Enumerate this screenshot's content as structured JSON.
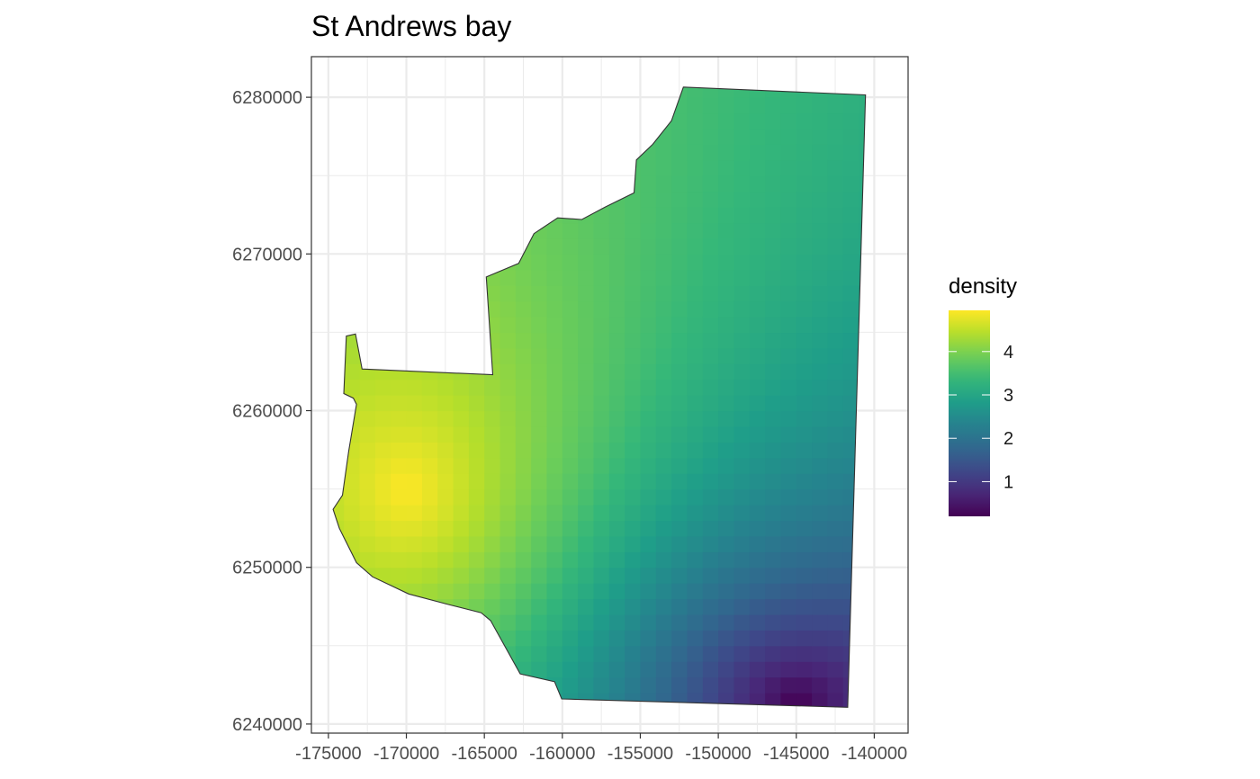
{
  "chart_data": {
    "type": "heatmap",
    "title": "St Andrews bay",
    "xlabel": "",
    "ylabel": "",
    "x_ticks": [
      -175000,
      -170000,
      -165000,
      -160000,
      -155000,
      -150000,
      -145000,
      -140000
    ],
    "x_tick_labels": [
      "-175000",
      "-170000",
      "-165000",
      "-160000",
      "-155000",
      "-150000",
      "-145000",
      "-140000"
    ],
    "y_ticks": [
      6240000,
      6250000,
      6260000,
      6270000,
      6280000
    ],
    "y_tick_labels": [
      "6240000",
      "6250000",
      "6260000",
      "6270000",
      "6280000"
    ],
    "xlim": [
      -176090,
      -137830
    ],
    "ylim": [
      6239420,
      6282590
    ],
    "grid": true,
    "fill_variable": "density",
    "colorscale": "viridis",
    "value_range": [
      0.2,
      4.95
    ],
    "hotspot": {
      "x": -170000,
      "y": 6255000,
      "value": 4.95
    },
    "coldspot": {
      "x": -145000,
      "y": 6241500,
      "value": 0.2
    },
    "grid_cell_size": 1000,
    "boundary": [
      [
        -164880,
        6268530
      ],
      [
        -162800,
        6269400
      ],
      [
        -161820,
        6271300
      ],
      [
        -160300,
        6272300
      ],
      [
        -158750,
        6272200
      ],
      [
        -157250,
        6273000
      ],
      [
        -155400,
        6273900
      ],
      [
        -155250,
        6276000
      ],
      [
        -154200,
        6277000
      ],
      [
        -153000,
        6278500
      ],
      [
        -152240,
        6280650
      ],
      [
        -140560,
        6280150
      ],
      [
        -141700,
        6241070
      ],
      [
        -160040,
        6241600
      ],
      [
        -160500,
        6242700
      ],
      [
        -162700,
        6243200
      ],
      [
        -164600,
        6246600
      ],
      [
        -165200,
        6247100
      ],
      [
        -167200,
        6247600
      ],
      [
        -169850,
        6248300
      ],
      [
        -172170,
        6249400
      ],
      [
        -173200,
        6250300
      ],
      [
        -174300,
        6252500
      ],
      [
        -174700,
        6253700
      ],
      [
        -174100,
        6254600
      ],
      [
        -173700,
        6257400
      ],
      [
        -173200,
        6260400
      ],
      [
        -173400,
        6260800
      ],
      [
        -174010,
        6261090
      ],
      [
        -173850,
        6264760
      ],
      [
        -173260,
        6264890
      ],
      [
        -172840,
        6262660
      ],
      [
        -164460,
        6262290
      ],
      [
        -164880,
        6268530
      ]
    ],
    "legend": {
      "title": "density",
      "breaks": [
        1,
        2,
        3,
        4
      ],
      "labels": [
        "1",
        "2",
        "3",
        "4"
      ],
      "position": "right"
    }
  }
}
